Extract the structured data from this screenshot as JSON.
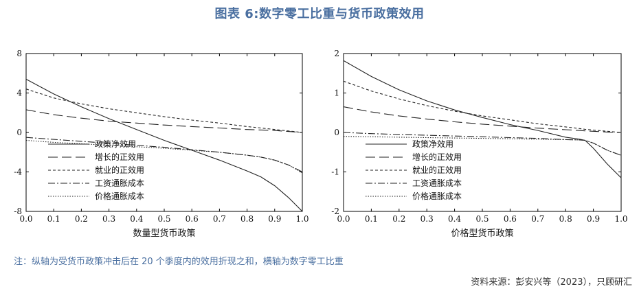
{
  "title": "图表 6:数字零工比重与货币政策效用",
  "note": "注：纵轴为受货币政策冲击后在 20 个季度内的效用折现之和，横轴为数字零工比重",
  "source": "资料来源：彭安兴等（2023），只顾研汇",
  "chart_data": [
    {
      "type": "line",
      "xlabel": "数量型货币政策",
      "ylabel": "",
      "xlim": [
        0,
        1
      ],
      "ylim": [
        -8,
        8
      ],
      "xticks": [
        "0.0",
        "0.1",
        "0.2",
        "0.3",
        "0.4",
        "0.5",
        "0.6",
        "0.7",
        "0.8",
        "0.9",
        "1.0"
      ],
      "yticks": [
        "8",
        "4",
        "0",
        "-4",
        "-8"
      ],
      "legend_position": "bottom-left",
      "x": [
        0,
        0.1,
        0.2,
        0.3,
        0.4,
        0.5,
        0.6,
        0.7,
        0.8,
        0.85,
        0.9,
        0.95,
        1.0
      ],
      "series": [
        {
          "name": "政策净效用",
          "style": "solid",
          "values": [
            5.4,
            3.9,
            2.6,
            1.4,
            0.3,
            -0.8,
            -1.8,
            -2.8,
            -3.9,
            -4.5,
            -5.4,
            -6.6,
            -8.0
          ]
        },
        {
          "name": "增长的正效用",
          "style": "longdash",
          "values": [
            2.3,
            1.8,
            1.45,
            1.15,
            0.95,
            0.75,
            0.6,
            0.45,
            0.3,
            0.25,
            0.2,
            0.1,
            0.0
          ]
        },
        {
          "name": "就业的正效用",
          "style": "shortdash",
          "values": [
            4.4,
            3.5,
            2.9,
            2.4,
            2.0,
            1.6,
            1.25,
            0.95,
            0.6,
            0.45,
            0.3,
            0.15,
            0.0
          ]
        },
        {
          "name": "工资通胀成本",
          "style": "dashdot",
          "values": [
            -0.5,
            -0.7,
            -0.9,
            -1.1,
            -1.3,
            -1.5,
            -1.75,
            -2.0,
            -2.3,
            -2.5,
            -2.8,
            -3.3,
            -4.0
          ]
        },
        {
          "name": "价格通胀成本",
          "style": "dotted",
          "values": [
            -0.8,
            -1.0,
            -1.15,
            -1.3,
            -1.45,
            -1.6,
            -1.8,
            -2.0,
            -2.3,
            -2.5,
            -2.8,
            -3.3,
            -4.1
          ]
        }
      ]
    },
    {
      "type": "line",
      "xlabel": "价格型货币政策",
      "ylabel": "",
      "xlim": [
        0,
        1
      ],
      "ylim": [
        -2,
        2
      ],
      "xticks": [
        "0.0",
        "0.1",
        "0.2",
        "0.3",
        "0.4",
        "0.5",
        "0.6",
        "0.7",
        "0.8",
        "0.9",
        "1.0"
      ],
      "yticks": [
        "2",
        "1",
        "0",
        "-1",
        "-2"
      ],
      "legend_position": "bottom-left",
      "x": [
        0,
        0.1,
        0.2,
        0.3,
        0.4,
        0.5,
        0.6,
        0.7,
        0.8,
        0.85,
        0.87,
        0.9,
        0.95,
        1.0
      ],
      "series": [
        {
          "name": "政策净效用",
          "style": "solid",
          "values": [
            1.82,
            1.42,
            1.08,
            0.8,
            0.57,
            0.38,
            0.2,
            0.05,
            -0.12,
            -0.17,
            -0.2,
            -0.4,
            -0.8,
            -1.15
          ]
        },
        {
          "name": "增长的正效用",
          "style": "longdash",
          "values": [
            0.65,
            0.52,
            0.42,
            0.34,
            0.27,
            0.21,
            0.16,
            0.11,
            0.07,
            0.05,
            0.04,
            0.03,
            0.01,
            0.0
          ]
        },
        {
          "name": "就业的正效用",
          "style": "shortdash",
          "values": [
            1.3,
            1.05,
            0.85,
            0.68,
            0.54,
            0.42,
            0.32,
            0.22,
            0.14,
            0.1,
            0.08,
            0.06,
            0.03,
            0.0
          ]
        },
        {
          "name": "工资通胀成本",
          "style": "dashdot",
          "values": [
            0.0,
            -0.03,
            -0.05,
            -0.07,
            -0.09,
            -0.11,
            -0.13,
            -0.15,
            -0.18,
            -0.19,
            -0.2,
            -0.27,
            -0.45,
            -0.58
          ]
        },
        {
          "name": "价格通胀成本",
          "style": "dotted",
          "values": [
            -0.1,
            -0.11,
            -0.12,
            -0.13,
            -0.14,
            -0.15,
            -0.16,
            -0.17,
            -0.18,
            -0.19,
            -0.2,
            -0.27,
            -0.45,
            -0.58
          ]
        }
      ]
    }
  ]
}
